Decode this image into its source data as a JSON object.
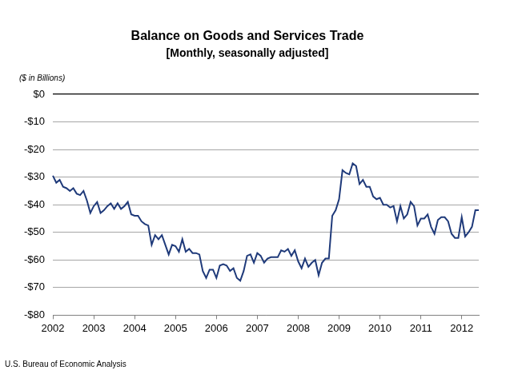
{
  "chart_data": {
    "type": "line",
    "title": "Balance on Goods and Services Trade",
    "subtitle": "[Monthly, seasonally adjusted]",
    "y_label": "($ in Billions)",
    "source": "U.S. Bureau of Economic Analysis",
    "color": "#1f3a7a",
    "grid": true,
    "ylim": [
      -80,
      0
    ],
    "yticks": [
      {
        "value": 0,
        "label": "$0"
      },
      {
        "value": -10,
        "label": "-$10"
      },
      {
        "value": -20,
        "label": "-$20"
      },
      {
        "value": -30,
        "label": "-$30"
      },
      {
        "value": -40,
        "label": "-$40"
      },
      {
        "value": -50,
        "label": "-$50"
      },
      {
        "value": -60,
        "label": "-$60"
      },
      {
        "value": -70,
        "label": "-$70"
      },
      {
        "value": -80,
        "label": "-$80"
      }
    ],
    "categories": [
      "2002",
      null,
      null,
      null,
      null,
      null,
      null,
      null,
      null,
      null,
      null,
      null,
      "2003",
      null,
      null,
      null,
      null,
      null,
      null,
      null,
      null,
      null,
      null,
      null,
      "2004",
      null,
      null,
      null,
      null,
      null,
      null,
      null,
      null,
      null,
      null,
      null,
      "2005",
      null,
      null,
      null,
      null,
      null,
      null,
      null,
      null,
      null,
      null,
      null,
      "2006",
      null,
      null,
      null,
      null,
      null,
      null,
      null,
      null,
      null,
      null,
      null,
      "2007",
      null,
      null,
      null,
      null,
      null,
      null,
      null,
      null,
      null,
      null,
      null,
      "2008",
      null,
      null,
      null,
      null,
      null,
      null,
      null,
      null,
      null,
      null,
      null,
      "2009",
      null,
      null,
      null,
      null,
      null,
      null,
      null,
      null,
      null,
      null,
      null,
      "2010",
      null,
      null,
      null,
      null,
      null,
      null,
      null,
      null,
      null,
      null,
      null,
      "2011",
      null,
      null,
      null,
      null,
      null,
      null,
      null,
      null,
      null,
      null,
      null,
      "2012",
      null,
      null,
      null,
      null,
      null
    ],
    "values": [
      -29.5,
      -32,
      -31,
      -33.5,
      -34,
      -35,
      -34,
      -36,
      -36.5,
      -35,
      -38.5,
      -43,
      -40.5,
      -39,
      -43,
      -42,
      -40.5,
      -39.5,
      -41.5,
      -39.5,
      -41.5,
      -40.5,
      -39,
      -43.5,
      -44,
      -44,
      -46,
      -47,
      -47.5,
      -54.5,
      -51,
      -52.5,
      -51,
      -54.5,
      -58,
      -54.5,
      -55,
      -57,
      -52.5,
      -57,
      -56,
      -57.5,
      -57.5,
      -58,
      -64,
      -66.5,
      -63.5,
      -63.5,
      -66.5,
      -62,
      -61.5,
      -62,
      -64,
      -63,
      -66.5,
      -67.5,
      -64,
      -58.5,
      -58,
      -61,
      -57.5,
      -58.5,
      -61,
      -59.5,
      -59,
      -59,
      -59,
      -56.5,
      -57,
      -56,
      -58.5,
      -56.5,
      -60.5,
      -63,
      -59.5,
      -62.5,
      -61,
      -60,
      -65.5,
      -61,
      -59.5,
      -59.5,
      -44,
      -42,
      -38,
      -27.5,
      -28.5,
      -29,
      -25,
      -26,
      -32.5,
      -31,
      -33.5,
      -33.5,
      -37,
      -38,
      -37.5,
      -40,
      -40,
      -41,
      -40.5,
      -46,
      -40.5,
      -45,
      -43.5,
      -39,
      -40.5,
      -47.5,
      -45,
      -45,
      -43.5,
      -48,
      -50.5,
      -45.5,
      -44.5,
      -44.5,
      -46,
      -50.5,
      -52,
      -52,
      -44.5,
      -51.5,
      -50,
      -48,
      -42,
      -42
    ]
  }
}
